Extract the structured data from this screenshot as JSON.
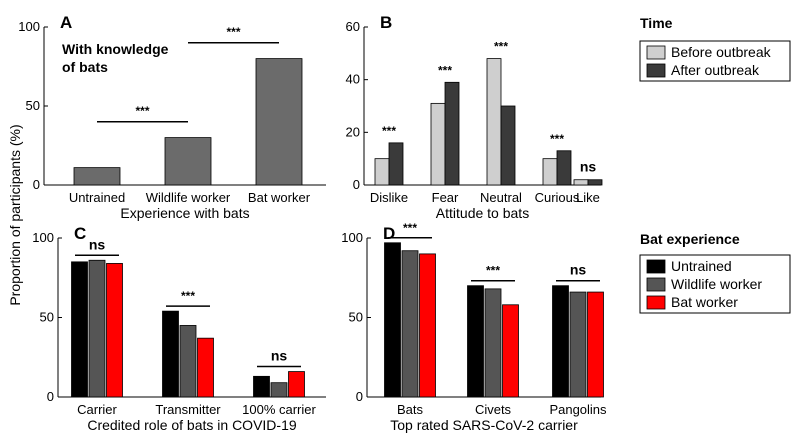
{
  "figure": {
    "ylabel": "Proportion of participants (%)"
  },
  "colors": {
    "A_bar": "#6b6b6b",
    "before": "#cfcfcf",
    "after": "#3a3a3a",
    "untrained": "#000000",
    "wildlife": "#555555",
    "batworker": "#ff0000"
  },
  "chart_data": [
    {
      "panel": "A",
      "type": "bar",
      "note": [
        "With knowledge",
        "of bats"
      ],
      "categories": [
        "Untrained",
        "Wildlife worker",
        "Bat worker"
      ],
      "values": [
        11,
        30,
        80
      ],
      "xlabel": "Experience with bats",
      "ylim": [
        0,
        100
      ],
      "yticks": [
        0,
        50,
        100
      ],
      "sig": [
        {
          "from": 0,
          "to": 1,
          "y": 40,
          "label": "***"
        },
        {
          "from": 1,
          "to": 2,
          "y": 90,
          "label": "***"
        }
      ]
    },
    {
      "panel": "B",
      "type": "bar",
      "categories": [
        "Dislike",
        "Fear",
        "Neutral",
        "Curious",
        "Like"
      ],
      "series": [
        {
          "name": "Before outbreak",
          "values": [
            10,
            31,
            48,
            10,
            2
          ]
        },
        {
          "name": "After outbreak",
          "values": [
            16,
            39,
            30,
            13,
            2
          ]
        }
      ],
      "xlabel": "Attitude to bats",
      "ylim": [
        0,
        60
      ],
      "yticks": [
        0,
        20,
        40,
        60
      ],
      "sig": [
        "***",
        "***",
        "***",
        "***",
        "ns"
      ],
      "legend": {
        "title": "Time",
        "position": "right"
      }
    },
    {
      "panel": "C",
      "type": "bar",
      "categories": [
        "Carrier",
        "Transmitter",
        "100% carrier"
      ],
      "series": [
        {
          "name": "Untrained",
          "values": [
            85,
            54,
            13
          ]
        },
        {
          "name": "Wildlife worker",
          "values": [
            86,
            45,
            9
          ]
        },
        {
          "name": "Bat worker",
          "values": [
            84,
            37,
            16
          ]
        }
      ],
      "xlabel": "Credited role of bats in COVID-19",
      "ylim": [
        0,
        100
      ],
      "yticks": [
        0,
        50,
        100
      ],
      "sig": [
        "ns",
        "***",
        "ns"
      ]
    },
    {
      "panel": "D",
      "type": "bar",
      "categories": [
        "Bats",
        "Civets",
        "Pangolins"
      ],
      "series": [
        {
          "name": "Untrained",
          "values": [
            97,
            70,
            70
          ]
        },
        {
          "name": "Wildlife worker",
          "values": [
            92,
            68,
            66
          ]
        },
        {
          "name": "Bat worker",
          "values": [
            90,
            58,
            66
          ]
        }
      ],
      "xlabel": "Top rated SARS-CoV-2 carrier",
      "ylim": [
        0,
        100
      ],
      "yticks": [
        0,
        50,
        100
      ],
      "sig": [
        "***",
        "***",
        "ns"
      ],
      "legend": {
        "title": "Bat experience",
        "position": "right"
      }
    }
  ]
}
